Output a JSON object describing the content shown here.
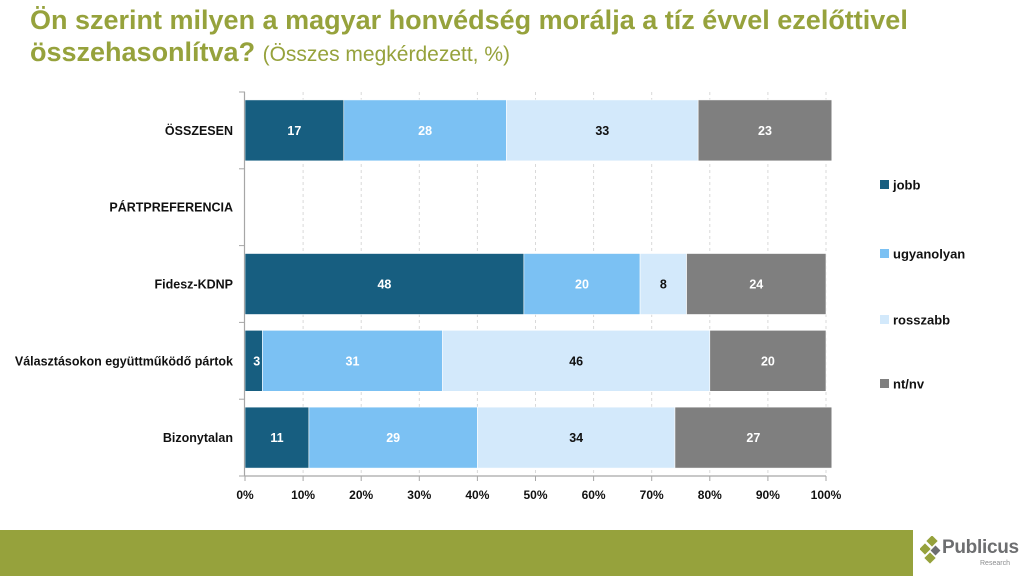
{
  "header": {
    "title": "Ön szerint milyen a magyar honvédség morálja a tíz évvel ezelőttivel összehasonlítva?",
    "subtitle": "(Összes megkérdezett, %)"
  },
  "chart_data": {
    "type": "bar",
    "orientation": "horizontal",
    "stacked": "percent",
    "categories": [
      "ÖSSZESEN",
      "PÁRTPREFERENCIA",
      "Fidesz-KDNP",
      "Választásokon együttműködő pártok",
      "Bizonytalan"
    ],
    "series": [
      {
        "name": "jobb",
        "color": "#175e80",
        "label_color": "#ffffff",
        "values": [
          17,
          null,
          48,
          3,
          11
        ]
      },
      {
        "name": "ugyanolyan",
        "color": "#7bc1f3",
        "label_color": "#ffffff",
        "values": [
          28,
          null,
          20,
          31,
          29
        ]
      },
      {
        "name": "rosszabb",
        "color": "#d3e9fb",
        "label_color": "#111111",
        "values": [
          33,
          null,
          8,
          46,
          34
        ]
      },
      {
        "name": "nt/nv",
        "color": "#7f7f7f",
        "label_color": "#ffffff",
        "values": [
          23,
          null,
          24,
          20,
          27
        ]
      }
    ],
    "xlim": [
      0,
      100
    ],
    "xticks": [
      "0%",
      "10%",
      "20%",
      "30%",
      "40%",
      "50%",
      "60%",
      "70%",
      "80%",
      "90%",
      "100%"
    ],
    "grid": "vertical-dashed",
    "legend": "right"
  },
  "footer": {
    "logo_name": "Publicus",
    "logo_sub": "Research",
    "band_color": "#96a23c"
  }
}
